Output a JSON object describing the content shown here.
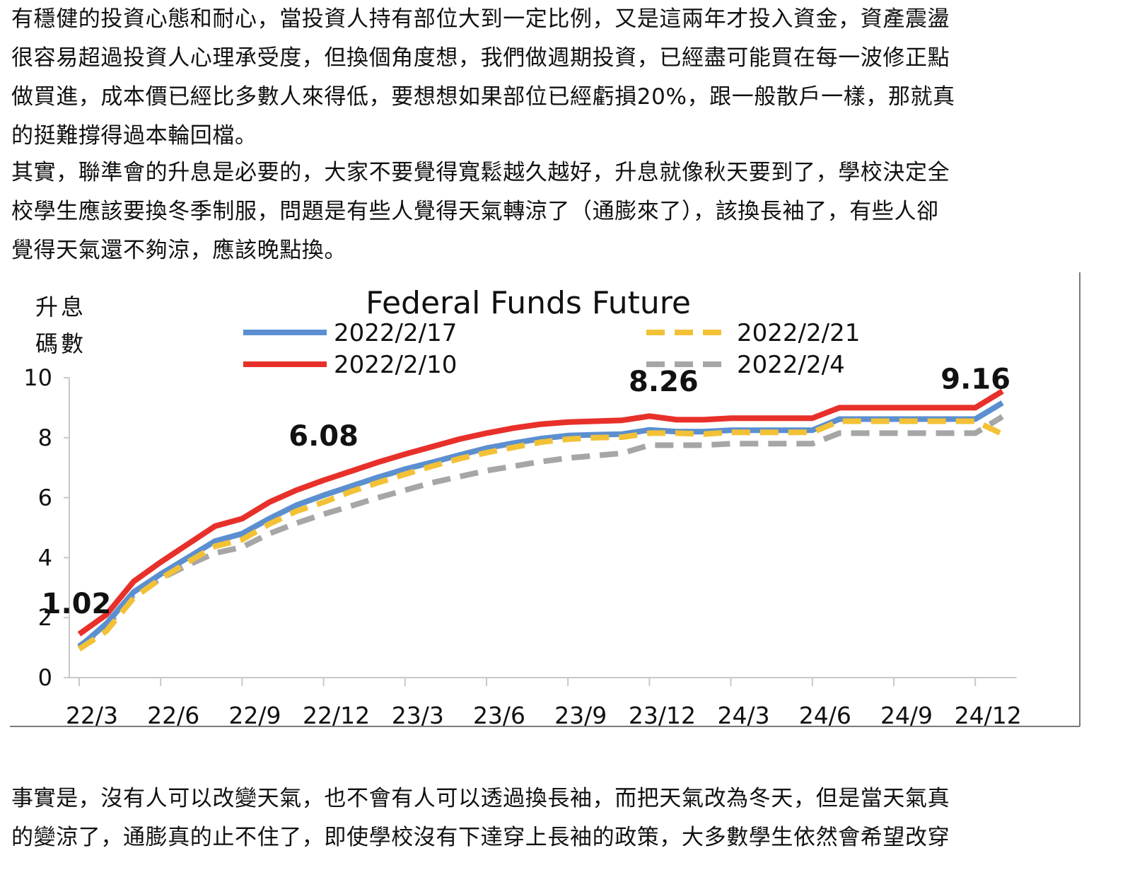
{
  "article": {
    "paragraph_1": [
      "有穩健的投資心態和耐心，當投資人持有部位大到一定比例，又是這兩年才投入資金，資產震盪",
      "很容易超過投資人心理承受度，但換個角度想，我們做週期投資，已經盡可能買在每一波修正點",
      "做買進，成本價已經比多數人來得低，要想想如果部位已經虧損20%，跟一般散戶一樣，那就真",
      "的挺難撐得過本輪回檔。"
    ],
    "paragraph_2": [
      "其實，聯準會的升息是必要的，大家不要覺得寬鬆越久越好，升息就像秋天要到了，學校決定全",
      "校學生應該要換冬季制服，問題是有些人覺得天氣轉涼了（通膨來了），該換長袖了，有些人卻",
      "覺得天氣還不夠涼，應該晚點換。"
    ],
    "paragraph_3": [
      "事實是，沒有人可以改變天氣，也不會有人可以透過換長袖，而把天氣改為冬天，但是當天氣真",
      "的變涼了，通膨真的止不住了，即使學校沒有下達穿上長袖的政策，大多數學生依然會希望改穿"
    ]
  },
  "chart_data": {
    "type": "line",
    "title": "Federal Funds Future",
    "ylabel_lines": [
      "升息",
      "碼數"
    ],
    "xlabel": "",
    "ylim": [
      0,
      10
    ],
    "yticks": [
      "0",
      "2",
      "4",
      "6",
      "8",
      "10"
    ],
    "xticks": [
      "22/3",
      "22/6",
      "22/9",
      "22/12",
      "23/3",
      "23/6",
      "23/9",
      "23/12",
      "24/3",
      "24/6",
      "24/9",
      "24/12"
    ],
    "x": [
      "22/3",
      "22/4",
      "22/5",
      "22/6",
      "22/7",
      "22/8",
      "22/9",
      "22/10",
      "22/11",
      "22/12",
      "23/1",
      "23/2",
      "23/3",
      "23/4",
      "23/5",
      "23/6",
      "23/7",
      "23/8",
      "23/9",
      "23/10",
      "23/11",
      "23/12",
      "24/1",
      "24/2",
      "24/3",
      "24/4",
      "24/5",
      "24/6",
      "24/7",
      "24/8",
      "24/9",
      "24/10",
      "24/11",
      "24/12",
      "25/1"
    ],
    "legend_position": "top",
    "grid": false,
    "series": [
      {
        "name": "2022/2/17",
        "color": "#5b8fd0",
        "dash": false,
        "values": [
          1.02,
          1.8,
          2.85,
          3.45,
          4.0,
          4.55,
          4.8,
          5.3,
          5.75,
          6.08,
          6.38,
          6.68,
          6.95,
          7.18,
          7.42,
          7.65,
          7.82,
          7.97,
          8.07,
          8.1,
          8.12,
          8.26,
          8.2,
          8.2,
          8.25,
          8.25,
          8.25,
          8.25,
          8.62,
          8.62,
          8.62,
          8.62,
          8.62,
          8.62,
          9.16
        ]
      },
      {
        "name": "2022/2/21",
        "color": "#f2c136",
        "dash": true,
        "values": [
          0.95,
          1.55,
          2.65,
          3.3,
          3.85,
          4.38,
          4.6,
          5.12,
          5.55,
          5.85,
          6.2,
          6.5,
          6.78,
          7.05,
          7.3,
          7.5,
          7.68,
          7.85,
          7.95,
          8.0,
          8.02,
          8.15,
          8.15,
          8.12,
          8.18,
          8.18,
          8.18,
          8.18,
          8.55,
          8.55,
          8.55,
          8.55,
          8.55,
          8.55,
          8.12
        ]
      },
      {
        "name": "2022/2/10",
        "color": "#e8302a",
        "dash": false,
        "values": [
          1.45,
          2.1,
          3.2,
          3.85,
          4.45,
          5.05,
          5.3,
          5.85,
          6.25,
          6.58,
          6.88,
          7.18,
          7.45,
          7.7,
          7.95,
          8.15,
          8.32,
          8.45,
          8.52,
          8.55,
          8.58,
          8.72,
          8.6,
          8.6,
          8.65,
          8.65,
          8.65,
          8.65,
          9.0,
          9.0,
          9.0,
          9.0,
          9.0,
          9.0,
          9.55
        ]
      },
      {
        "name": "2022/2/4",
        "color": "#a6a6a6",
        "dash": true,
        "values": [
          1.05,
          1.7,
          2.75,
          3.3,
          3.75,
          4.15,
          4.35,
          4.8,
          5.15,
          5.45,
          5.72,
          6.0,
          6.25,
          6.5,
          6.7,
          6.9,
          7.05,
          7.2,
          7.32,
          7.4,
          7.48,
          7.75,
          7.75,
          7.75,
          7.8,
          7.8,
          7.8,
          7.8,
          8.15,
          8.15,
          8.15,
          8.15,
          8.15,
          8.15,
          8.7
        ]
      }
    ],
    "annotations": [
      {
        "text": "1.02",
        "x": "22/3",
        "y": 1.02,
        "color": "#5b8fd0"
      },
      {
        "text": "6.08",
        "x": "22/12",
        "y": 6.08,
        "color": "#5b8fd0"
      },
      {
        "text": "8.26",
        "x": "23/12",
        "y": 8.26,
        "color": "#5b8fd0"
      },
      {
        "text": "9.16",
        "x": "25/1",
        "y": 9.16,
        "color": "#5b8fd0"
      }
    ],
    "colors": {
      "axis": "#c8c8c8",
      "frame": "#7a7a7a",
      "text": "#111111"
    }
  }
}
